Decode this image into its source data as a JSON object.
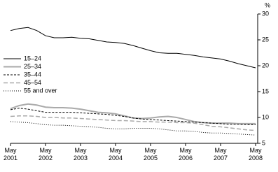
{
  "chart_data": {
    "type": "line",
    "y_unit": "%",
    "axis_side": "right",
    "grid": false,
    "legend": "left",
    "categories": [
      "May 2001",
      null,
      null,
      null,
      "May 2002",
      null,
      null,
      null,
      "May 2003",
      null,
      null,
      null,
      "May 2004",
      null,
      null,
      null,
      "May 2005",
      null,
      null,
      null,
      "May 2006",
      null,
      null,
      null,
      "May 2007",
      null,
      null,
      null,
      "May 2008"
    ],
    "ylim": [
      5,
      30
    ],
    "yticks": [
      5,
      10,
      15,
      20,
      25,
      30
    ],
    "series": [
      {
        "name": "15–24",
        "color": "#000000",
        "style": "solid",
        "width": 1,
        "values": [
          26.8,
          27.2,
          27.4,
          26.8,
          25.8,
          25.4,
          25.4,
          25.5,
          25.3,
          25.2,
          24.9,
          24.6,
          24.5,
          24.3,
          23.9,
          23.4,
          22.9,
          22.5,
          22.4,
          22.4,
          22.2,
          22.0,
          21.7,
          21.5,
          21.3,
          20.9,
          20.4,
          20.0,
          19.6
        ]
      },
      {
        "name": "25–34",
        "color": "#aaaaaa",
        "style": "solid",
        "width": 2,
        "values": [
          11.7,
          12.3,
          12.6,
          12.4,
          12.0,
          11.9,
          11.9,
          11.8,
          11.6,
          11.3,
          11.0,
          10.9,
          10.7,
          10.3,
          9.9,
          9.8,
          9.9,
          10.1,
          10.2,
          10.0,
          9.6,
          9.2,
          9.0,
          8.9,
          8.9,
          8.9,
          8.8,
          8.8,
          8.8
        ]
      },
      {
        "name": "35–44",
        "color": "#000000",
        "style": "dashed",
        "width": 1,
        "values": [
          11.5,
          11.8,
          11.6,
          11.3,
          11.0,
          11.0,
          11.0,
          11.0,
          10.9,
          10.8,
          10.7,
          10.6,
          10.4,
          10.2,
          9.9,
          9.7,
          9.6,
          9.5,
          9.4,
          9.3,
          9.2,
          9.1,
          9.0,
          8.9,
          8.8,
          8.7,
          8.7,
          8.6,
          8.6
        ]
      },
      {
        "name": "45–54",
        "color": "#aaaaaa",
        "style": "longdash",
        "width": 1.5,
        "values": [
          10.2,
          10.3,
          10.3,
          10.2,
          10.0,
          10.0,
          9.9,
          9.9,
          9.8,
          9.7,
          9.6,
          9.5,
          9.4,
          9.4,
          9.3,
          9.2,
          9.2,
          9.1,
          9.1,
          9.0,
          9.0,
          8.9,
          8.6,
          8.3,
          8.2,
          8.0,
          7.8,
          7.6,
          7.5
        ]
      },
      {
        "name": "55 and over",
        "color": "#000000",
        "style": "dotted",
        "width": 1,
        "values": [
          9.2,
          9.1,
          9.0,
          8.8,
          8.6,
          8.5,
          8.5,
          8.4,
          8.3,
          8.2,
          8.1,
          7.9,
          7.8,
          7.8,
          7.9,
          7.9,
          7.9,
          7.8,
          7.6,
          7.4,
          7.4,
          7.3,
          7.1,
          7.0,
          7.0,
          6.9,
          6.8,
          6.7,
          6.6
        ]
      }
    ]
  }
}
